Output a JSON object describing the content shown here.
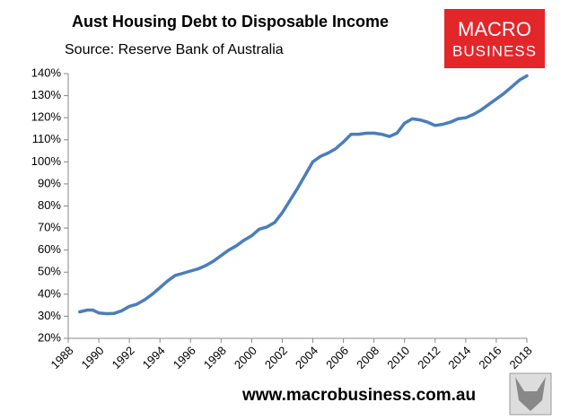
{
  "chart_data": {
    "type": "line",
    "title": "Aust Housing Debt to Disposable Income",
    "subtitle": "Source: Reserve Bank of Australia",
    "x": [
      1988.75,
      1989.25,
      1989.6,
      1990,
      1990.5,
      1991,
      1991.5,
      1992,
      1992.5,
      1993,
      1993.5,
      1994,
      1994.5,
      1995,
      1995.5,
      1996,
      1996.5,
      1997,
      1997.5,
      1998,
      1998.5,
      1999,
      1999.5,
      2000,
      2000.5,
      2001,
      2001.5,
      2002,
      2002.5,
      2003,
      2003.5,
      2004,
      2004.5,
      2005,
      2005.5,
      2006,
      2006.5,
      2007,
      2007.5,
      2008,
      2008.5,
      2009,
      2009.5,
      2010,
      2010.5,
      2011,
      2011.5,
      2012,
      2012.5,
      2013,
      2013.5,
      2014,
      2014.5,
      2015,
      2015.5,
      2016,
      2016.5,
      2017,
      2017.5,
      2018
    ],
    "values": [
      32,
      32.8,
      32.8,
      31.5,
      31.2,
      31.3,
      32.5,
      34.5,
      35.5,
      37.5,
      40,
      43,
      46,
      48.5,
      49.5,
      50.5,
      51.5,
      53,
      55,
      57.5,
      60,
      62,
      64.5,
      66.5,
      69.5,
      70.5,
      72.5,
      77,
      82.5,
      88,
      94,
      100,
      102.5,
      104,
      106,
      109,
      112.5,
      112.5,
      113,
      113,
      112.5,
      111.5,
      113,
      117.5,
      119.5,
      119,
      118,
      116.5,
      117,
      118,
      119.5,
      120,
      121.5,
      123.5,
      126,
      128.5,
      131,
      134,
      137,
      139
    ],
    "color": "#4a7ebb",
    "xlim": [
      1988,
      2018
    ],
    "xticks": [
      1988,
      1990,
      1992,
      1994,
      1996,
      1998,
      2000,
      2002,
      2004,
      2006,
      2008,
      2010,
      2012,
      2014,
      2016,
      2018
    ],
    "ylim": [
      20,
      140
    ],
    "yticks": [
      {
        "value": 20,
        "label": "20%"
      },
      {
        "value": 30,
        "label": "30%"
      },
      {
        "value": 40,
        "label": "40%"
      },
      {
        "value": 50,
        "label": "50%"
      },
      {
        "value": 60,
        "label": "60%"
      },
      {
        "value": 70,
        "label": "70%"
      },
      {
        "value": 80,
        "label": "80%"
      },
      {
        "value": 90,
        "label": "90%"
      },
      {
        "value": 100,
        "label": "100%"
      },
      {
        "value": 110,
        "label": "110%"
      },
      {
        "value": 120,
        "label": "120%"
      },
      {
        "value": 130,
        "label": "130%"
      },
      {
        "value": 140,
        "label": "140%"
      }
    ],
    "grid": false
  },
  "logo": {
    "line1": "MACRO",
    "line2": "BUSINESS"
  },
  "footer": "www.macrobusiness.com.au"
}
